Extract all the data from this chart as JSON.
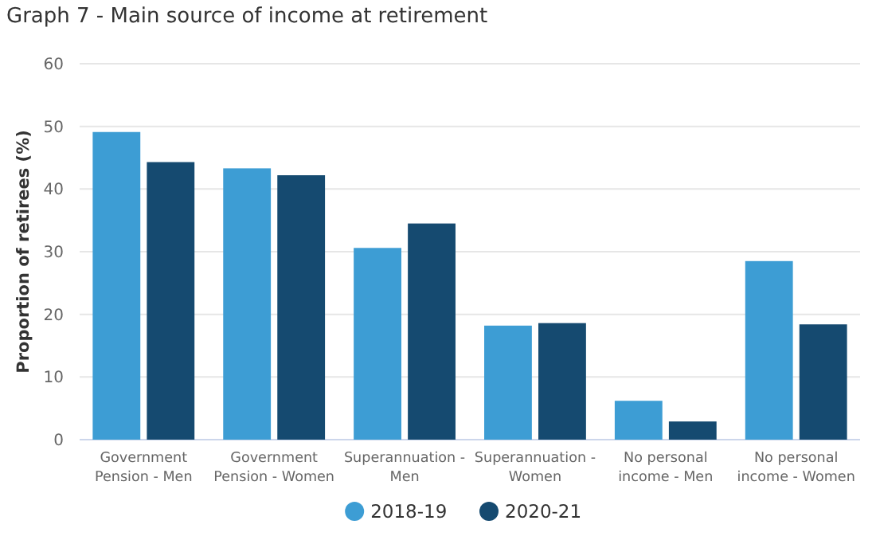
{
  "chart_data": {
    "type": "bar",
    "title": "Graph 7 - Main source of income at retirement",
    "ylabel": "Proportion of retirees (%)",
    "categories": [
      "Government Pension - Men",
      "Government Pension - Women",
      "Superannuation - Men",
      "Superannuation - Women",
      "No personal income - Men",
      "No personal income - Women"
    ],
    "series": [
      {
        "name": "2018-19",
        "color": "#3d9dd4",
        "values": [
          49.1,
          43.3,
          30.6,
          18.2,
          6.2,
          28.5
        ]
      },
      {
        "name": "2020-21",
        "color": "#154a70",
        "values": [
          44.3,
          42.2,
          34.5,
          18.6,
          2.9,
          18.4
        ]
      }
    ],
    "ylim": [
      0,
      60
    ],
    "yticks": [
      0,
      10,
      20,
      30,
      40,
      50,
      60
    ],
    "grid": "y",
    "legend": "bottom"
  }
}
